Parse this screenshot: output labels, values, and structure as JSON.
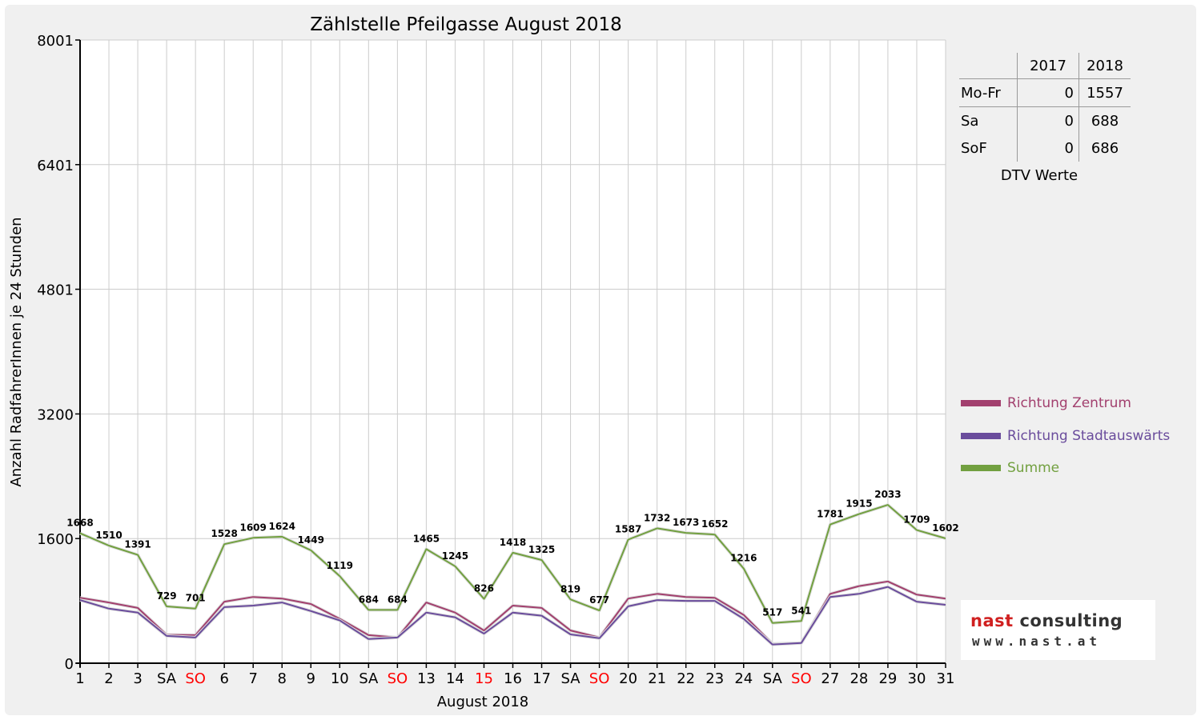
{
  "colors": {
    "zentrum": "#a2406e",
    "stadtaus": "#6a4c9c",
    "summe": "#72a040",
    "weekend": "#ff0000"
  },
  "chart_data": {
    "type": "line",
    "title": "Zählstelle Pfeilgasse August 2018",
    "xlabel": "August 2018",
    "ylabel": "Anzahl RadfahrerInnen je 24 Stunden",
    "yticks": [
      0,
      1600,
      3200,
      4801,
      6401,
      8001
    ],
    "ylim": [
      0,
      8001
    ],
    "grid": true,
    "x": [
      "1",
      "2",
      "3",
      "SA",
      "SO",
      "6",
      "7",
      "8",
      "9",
      "10",
      "SA",
      "SO",
      "13",
      "14",
      "15",
      "16",
      "17",
      "SA",
      "SO",
      "20",
      "21",
      "22",
      "23",
      "24",
      "SA",
      "SO",
      "27",
      "28",
      "29",
      "30",
      "31"
    ],
    "x_red": [
      false,
      false,
      false,
      false,
      true,
      false,
      false,
      false,
      false,
      false,
      false,
      true,
      false,
      false,
      true,
      false,
      false,
      false,
      true,
      false,
      false,
      false,
      false,
      false,
      false,
      true,
      false,
      false,
      false,
      false,
      false
    ],
    "series": [
      {
        "name": "Richtung Zentrum",
        "values": [
          840,
          780,
          710,
          365,
          360,
          790,
          850,
          830,
          760,
          570,
          360,
          330,
          780,
          650,
          420,
          740,
          710,
          420,
          330,
          830,
          890,
          850,
          840,
          620,
          250,
          260,
          890,
          990,
          1050,
          880,
          830
        ]
      },
      {
        "name": "Richtung Stadtauswärts",
        "values": [
          810,
          700,
          650,
          350,
          330,
          720,
          740,
          780,
          670,
          550,
          310,
          330,
          650,
          590,
          380,
          650,
          610,
          370,
          320,
          730,
          810,
          800,
          800,
          570,
          240,
          260,
          850,
          890,
          980,
          790,
          750
        ]
      },
      {
        "name": "Summe",
        "values": [
          1668,
          1510,
          1391,
          729,
          701,
          1528,
          1609,
          1624,
          1449,
          1119,
          684,
          684,
          1465,
          1245,
          826,
          1418,
          1325,
          819,
          677,
          1587,
          1732,
          1673,
          1652,
          1216,
          517,
          541,
          1781,
          1915,
          2033,
          1709,
          1602
        ],
        "labels": [
          "1668",
          "1510",
          "1391",
          "729",
          "701",
          "1528",
          "1609",
          "1624",
          "1449",
          "1119",
          "684",
          "684",
          "1465",
          "1245",
          "826",
          "1418",
          "1325",
          "819",
          "677",
          "1587",
          "1732",
          "1673",
          "1652",
          "1216",
          "517",
          "541",
          "1781",
          "1915",
          "2033",
          "1709",
          "1602"
        ]
      }
    ],
    "legend_position": "right"
  },
  "dtv": {
    "title": "DTV Werte",
    "col_2017": "2017",
    "col_2018": "2018",
    "rows": [
      {
        "label": "Mo-Fr",
        "v2017": "0",
        "v2018": "1557"
      },
      {
        "label": "Sa",
        "v2017": "0",
        "v2018": "688"
      },
      {
        "label": "SoF",
        "v2017": "0",
        "v2018": "686"
      }
    ]
  },
  "legend": [
    "Richtung Zentrum",
    "Richtung Stadtauswärts",
    "Summe"
  ],
  "logo": {
    "name_part1": "nast",
    "name_part2": "consulting",
    "url": "www.nast.at"
  }
}
